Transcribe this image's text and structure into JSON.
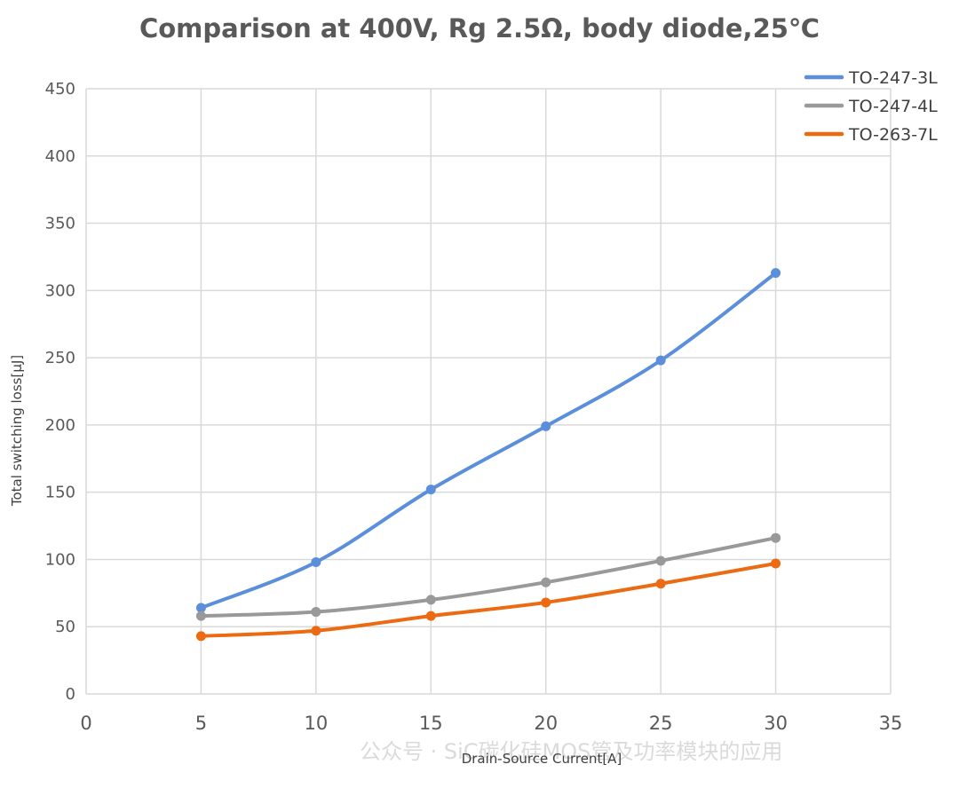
{
  "chart_data": {
    "type": "line",
    "title": "Comparison at 400V, Rg 2.5Ω, body diode,25℃",
    "xlabel": "Drain-Source Current[A]",
    "ylabel": "Total switching loss[μJ]",
    "xlim": [
      0,
      35
    ],
    "ylim": [
      0,
      450
    ],
    "xticks": [
      0,
      5,
      10,
      15,
      20,
      25,
      30,
      35
    ],
    "yticks": [
      0,
      50,
      100,
      150,
      200,
      250,
      300,
      350,
      400,
      450
    ],
    "grid": true,
    "smooth": true,
    "legend_position": "top-right",
    "x": [
      5,
      10,
      15,
      20,
      25,
      30
    ],
    "series": [
      {
        "name": "TO-247-3L",
        "color": "#5b8fdc",
        "values": [
          64,
          98,
          152,
          199,
          248,
          313
        ]
      },
      {
        "name": "TO-247-4L",
        "color": "#999999",
        "values": [
          58,
          61,
          70,
          83,
          99,
          116
        ]
      },
      {
        "name": "TO-263-7L",
        "color": "#ec6a12",
        "values": [
          43,
          47,
          58,
          68,
          82,
          97
        ]
      }
    ]
  },
  "watermark": "公众号 · SiC碳化硅MOS管及功率模块的应用"
}
